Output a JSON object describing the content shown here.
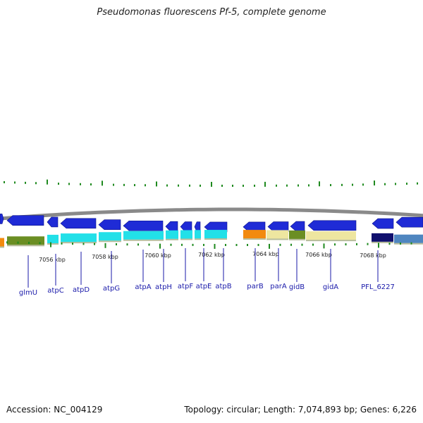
{
  "title": "Pseudomonas fluorescens Pf-5, complete genome",
  "footer": {
    "accession": "Accession: NC_004129",
    "summary": "Topology: circular; Length: 7,074,893 bp; Genes: 6,226"
  },
  "scale_labels": [
    "7056 kbp",
    "7058 kbp",
    "7060 kbp",
    "7062 kbp",
    "7064 kbp",
    "7066 kbp",
    "7068 kbp"
  ],
  "genes": [
    {
      "name": "glmU"
    },
    {
      "name": "atpC"
    },
    {
      "name": "atpD"
    },
    {
      "name": "atpG"
    },
    {
      "name": "atpA"
    },
    {
      "name": "atpH"
    },
    {
      "name": "atpF"
    },
    {
      "name": "atpE"
    },
    {
      "name": "atpB"
    },
    {
      "name": "parB"
    },
    {
      "name": "parA"
    },
    {
      "name": "gidB"
    },
    {
      "name": "gidA"
    },
    {
      "name": "PFL_6227"
    }
  ],
  "colors": {
    "gene_arrow": "#1f2bd6",
    "gene_label": "#1a1aaa",
    "backbone": "#8a8a8a",
    "gc_ticks": "#1f8a1f",
    "cog_cyan": "#22e0e8",
    "cog_olive": "#6b8e23",
    "cog_orange": "#f28a0f",
    "cog_khaki": "#eee6a0",
    "cog_navy": "#10106e",
    "cog_steel": "#4f86c0"
  }
}
